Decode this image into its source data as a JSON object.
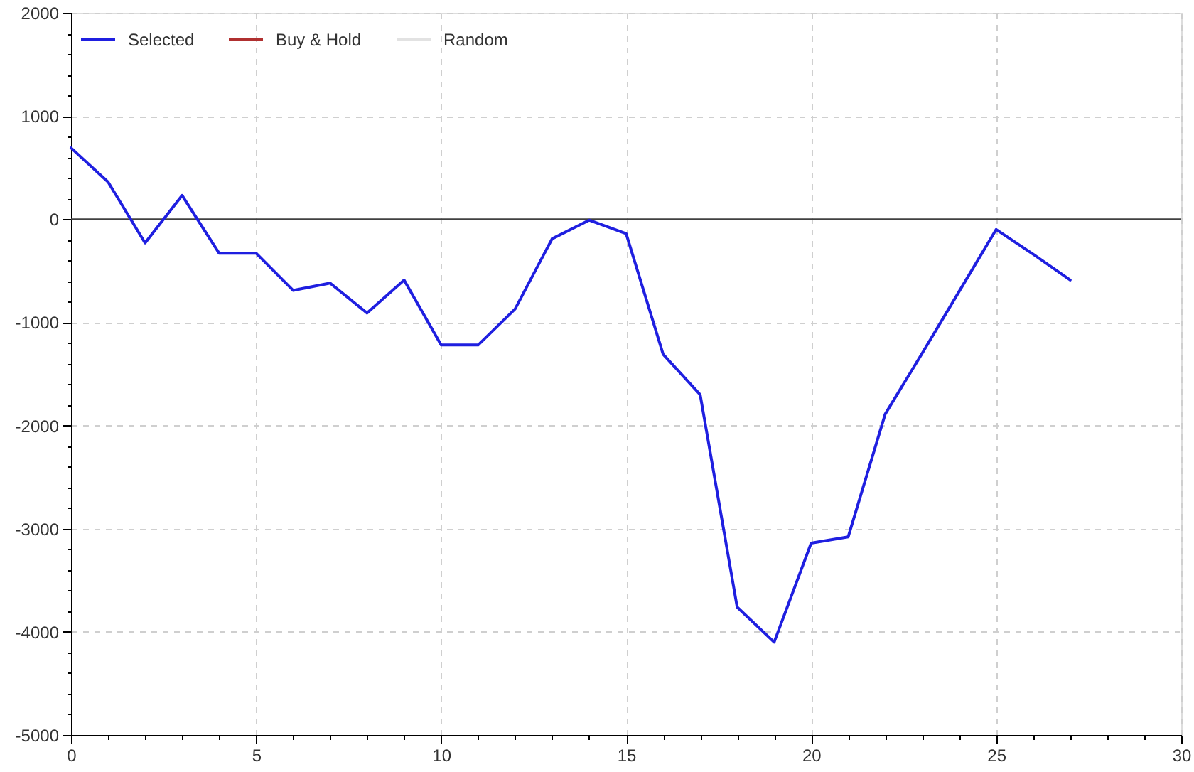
{
  "chart_data": {
    "type": "line",
    "x": [
      0,
      1,
      2,
      3,
      4,
      5,
      6,
      7,
      8,
      9,
      10,
      11,
      12,
      13,
      14,
      15,
      16,
      17,
      18,
      19,
      20,
      21,
      22,
      23,
      24,
      25,
      26,
      27
    ],
    "series": [
      {
        "name": "Selected",
        "color": "#1f1fe0",
        "values": [
          690,
          360,
          -230,
          230,
          -330,
          -330,
          -690,
          -620,
          -910,
          -590,
          -1220,
          -1220,
          -870,
          -190,
          -10,
          -140,
          -1310,
          -1700,
          -3760,
          -4100,
          -3140,
          -3080,
          -1890,
          -1300,
          -700,
          -100,
          -340,
          -590
        ]
      },
      {
        "name": "Buy & Hold",
        "color": "#b03030",
        "values": [
          null,
          null,
          null,
          null,
          null,
          null,
          null,
          null,
          null,
          null,
          null,
          null,
          null,
          null,
          null,
          null,
          null,
          null,
          null,
          null,
          null,
          null,
          null,
          null,
          null,
          null,
          null,
          null
        ]
      },
      {
        "name": "Random",
        "color": "#e2e2e2",
        "values": [
          null,
          null,
          null,
          null,
          null,
          null,
          null,
          null,
          null,
          null,
          null,
          null,
          null,
          null,
          null,
          null,
          null,
          null,
          null,
          null,
          null,
          null,
          null,
          null,
          null,
          null,
          null,
          null
        ]
      }
    ],
    "xlim": [
      0,
      30
    ],
    "xticks": [
      0,
      {
        "value": 1,
        "label": null
      },
      {
        "value": 2,
        "label": null
      },
      {
        "value": 3,
        "label": null
      },
      {
        "value": 4,
        "label": null
      },
      5,
      {
        "value": 6,
        "label": null
      },
      {
        "value": 7,
        "label": null
      },
      {
        "value": 8,
        "label": null
      },
      {
        "value": 9,
        "label": null
      },
      10,
      {
        "value": 11,
        "label": null
      },
      {
        "value": 12,
        "label": null
      },
      {
        "value": 13,
        "label": null
      },
      {
        "value": 14,
        "label": null
      },
      15,
      {
        "value": 16,
        "label": null
      },
      {
        "value": 17,
        "label": null
      },
      {
        "value": 18,
        "label": null
      },
      {
        "value": 19,
        "label": null
      },
      20,
      {
        "value": 21,
        "label": null
      },
      {
        "value": 22,
        "label": null
      },
      {
        "value": 23,
        "label": null
      },
      {
        "value": 24,
        "label": null
      },
      25,
      {
        "value": 26,
        "label": null
      },
      {
        "value": 27,
        "label": null
      },
      {
        "value": 28,
        "label": null
      },
      {
        "value": 29,
        "label": null
      },
      30
    ],
    "ylim": [
      -5000,
      2000
    ],
    "yticks": [
      -5000,
      {
        "value": -4800,
        "label": null
      },
      {
        "value": -4600,
        "label": null
      },
      {
        "value": -4400,
        "label": null
      },
      {
        "value": -4200,
        "label": null
      },
      -4000,
      {
        "value": -3800,
        "label": null
      },
      {
        "value": -3600,
        "label": null
      },
      {
        "value": -3400,
        "label": null
      },
      {
        "value": -3200,
        "label": null
      },
      -3000,
      {
        "value": -2800,
        "label": null
      },
      {
        "value": -2600,
        "label": null
      },
      {
        "value": -2400,
        "label": null
      },
      {
        "value": -2200,
        "label": null
      },
      -2000,
      {
        "value": -1800,
        "label": null
      },
      {
        "value": -1600,
        "label": null
      },
      {
        "value": -1400,
        "label": null
      },
      {
        "value": -1200,
        "label": null
      },
      -1000,
      {
        "value": -800,
        "label": null
      },
      {
        "value": -600,
        "label": null
      },
      {
        "value": -400,
        "label": null
      },
      {
        "value": -200,
        "label": null
      },
      0,
      {
        "value": 200,
        "label": null
      },
      {
        "value": 400,
        "label": null
      },
      {
        "value": 600,
        "label": null
      },
      {
        "value": 800,
        "label": null
      },
      1000,
      {
        "value": 1200,
        "label": null
      },
      {
        "value": 1400,
        "label": null
      },
      {
        "value": 1600,
        "label": null
      },
      {
        "value": 1800,
        "label": null
      },
      2000
    ],
    "ref_lines": [
      {
        "axis": "y",
        "value": 0,
        "color": "#404040"
      }
    ],
    "grid": true,
    "legend": "top left",
    "marker": "none",
    "line_style": "solid"
  }
}
